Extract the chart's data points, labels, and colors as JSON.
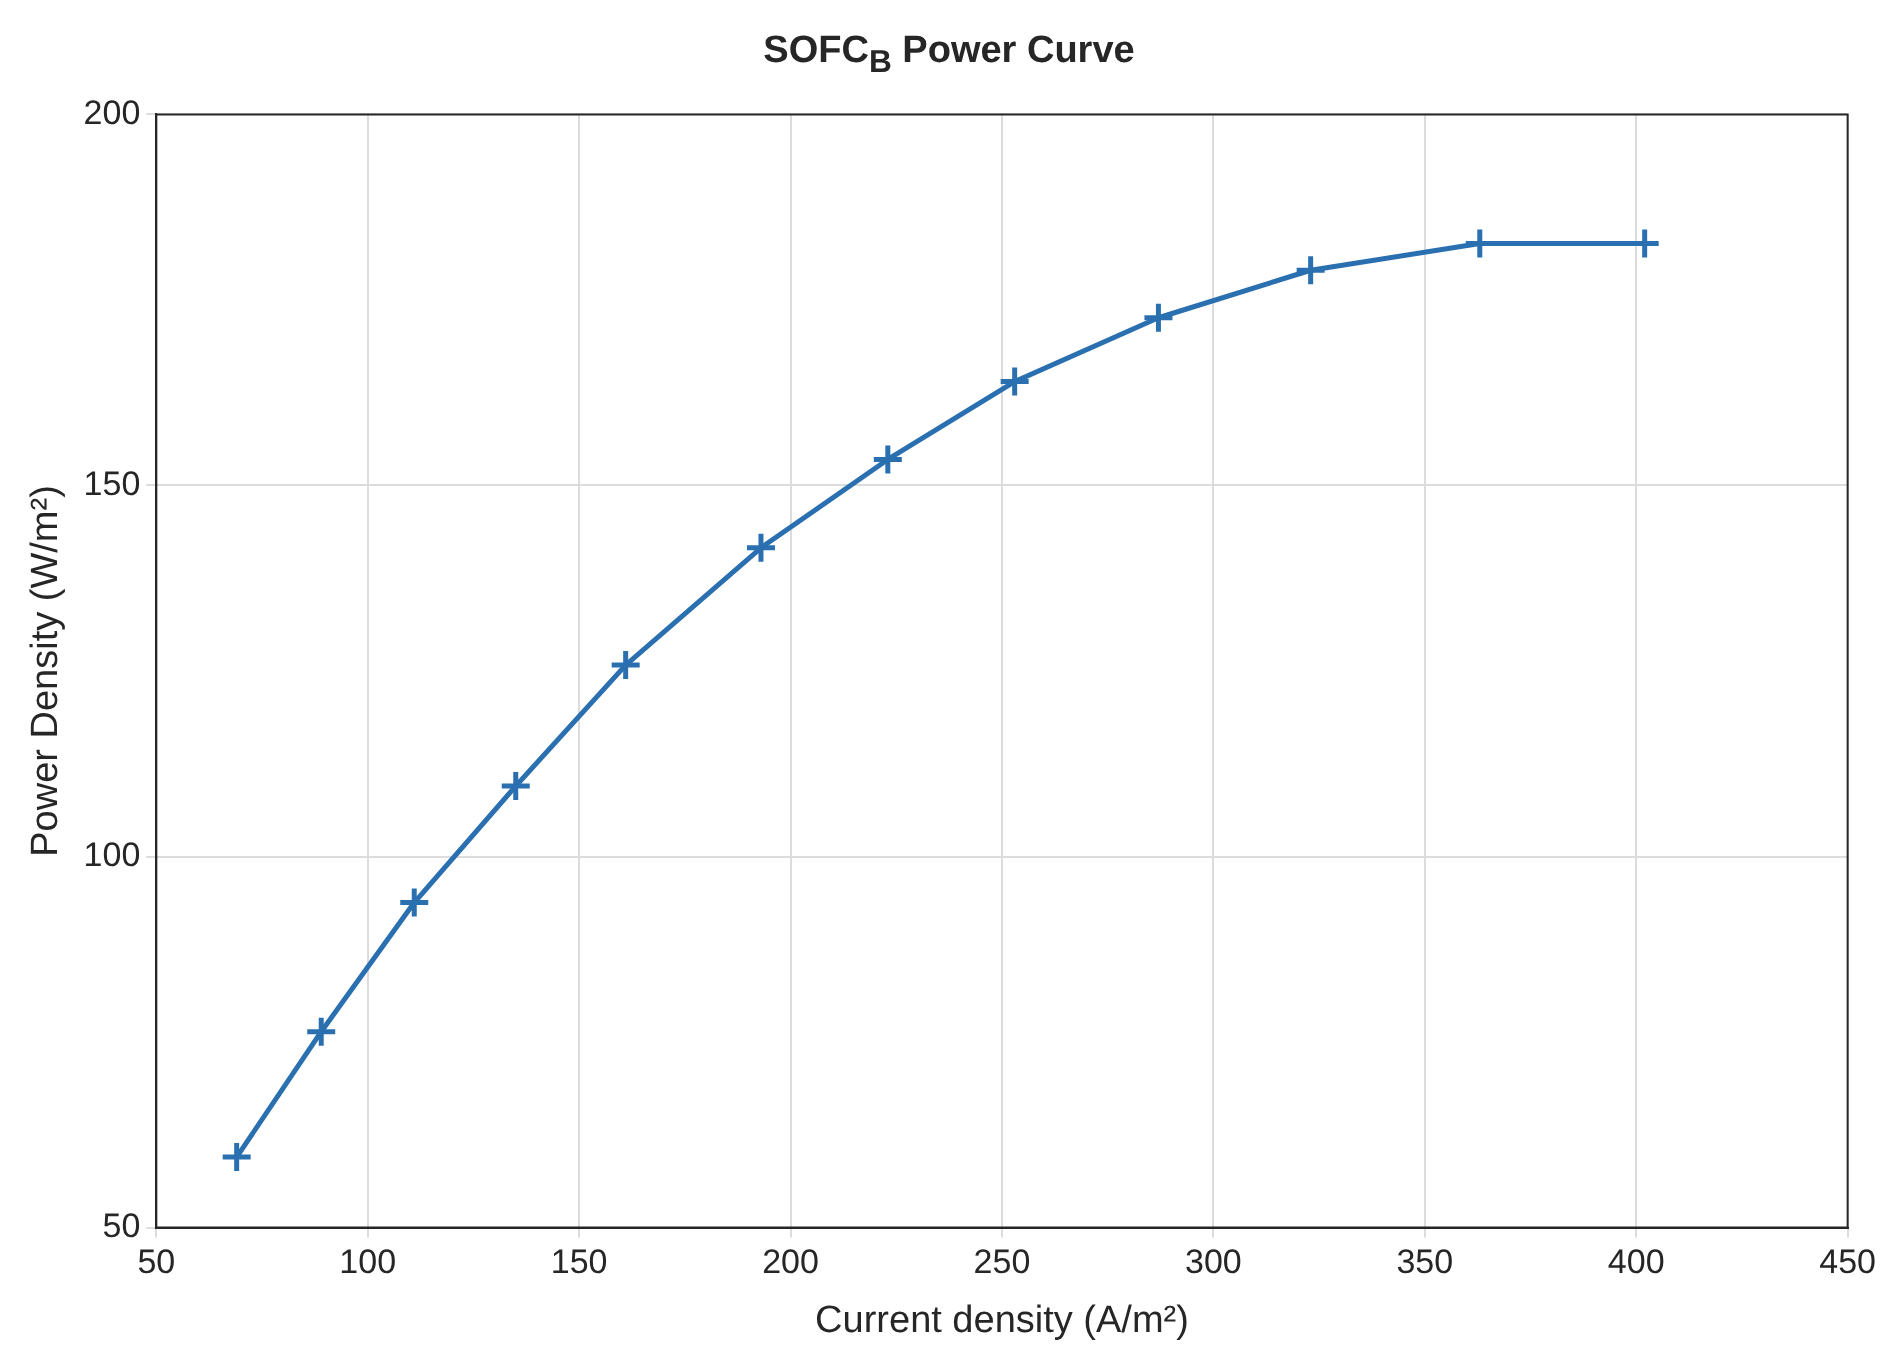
{
  "chart_data": {
    "type": "line",
    "title": "SOFC$_{B}$ Power Curve",
    "xlabel": "Current density (A/m²)",
    "ylabel": "Power Density (W/m²)",
    "x": [
      69,
      89,
      111,
      135,
      161,
      193,
      223,
      253,
      287,
      323,
      363,
      402
    ],
    "series": [
      {
        "color": "#2a70b0",
        "values": [
          59.5,
          76.4,
          93.8,
          109.5,
          125.8,
          141.6,
          153.5,
          164,
          172.6,
          179,
          182.6,
          182.6
        ]
      }
    ],
    "xlim": [
      50,
      450
    ],
    "xticks": [
      50,
      100,
      150,
      200,
      250,
      300,
      350,
      400,
      450
    ],
    "ylim": [
      50,
      200
    ],
    "yticks": [
      50,
      100,
      150,
      200
    ],
    "grid": true,
    "legend": false,
    "marker": "cross",
    "line_style": "solid"
  }
}
